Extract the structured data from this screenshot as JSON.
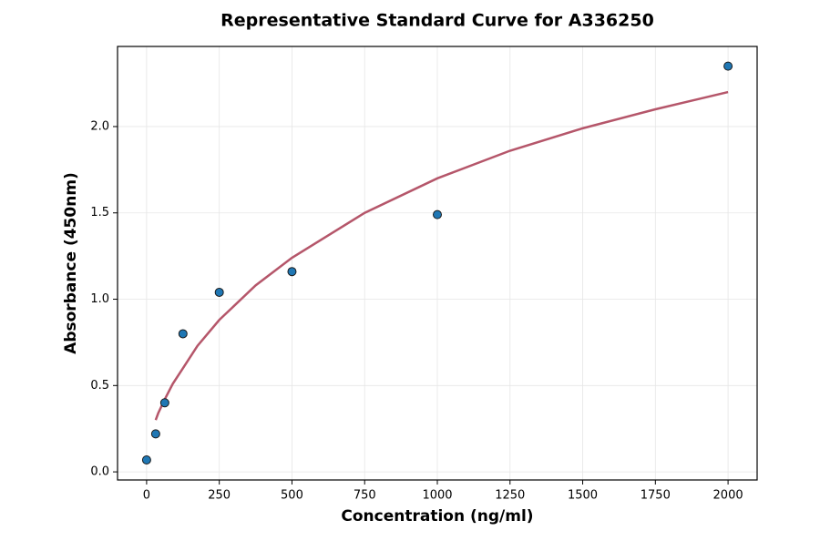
{
  "chart_data": {
    "type": "scatter",
    "title": "Representative Standard Curve for A336250",
    "x_label": "Concentration (ng/ml)",
    "y_label": "Absorbance (450nm)",
    "xlim": [
      -100,
      2100
    ],
    "ylim": [
      -0.047,
      2.464
    ],
    "xticks": [
      0,
      250,
      500,
      750,
      1000,
      1250,
      1500,
      1750,
      2000
    ],
    "yticks": [
      {
        "value": 0,
        "label": "0.0"
      },
      0.5,
      {
        "value": 1,
        "label": "1.0"
      },
      1.5,
      {
        "value": 2,
        "label": "2.0"
      }
    ],
    "grid": true,
    "series": [
      {
        "type": "scatter",
        "color": "#1f77b4",
        "x": [
          0,
          31.25,
          62.5,
          125,
          250,
          500,
          1000,
          2000
        ],
        "values": [
          0.069,
          0.22,
          0.4,
          0.8,
          1.04,
          1.16,
          1.49,
          2.35
        ]
      },
      {
        "type": "line",
        "color": "#b5566a",
        "x": [
          31.25,
          40,
          62.5,
          90,
          125,
          175,
          250,
          375,
          500,
          750,
          1000,
          1250,
          1500,
          1750,
          2000
        ],
        "values": [
          0.3,
          0.34,
          0.42,
          0.51,
          0.6,
          0.73,
          0.88,
          1.08,
          1.24,
          1.5,
          1.7,
          1.86,
          1.99,
          2.1,
          2.2
        ]
      }
    ]
  }
}
